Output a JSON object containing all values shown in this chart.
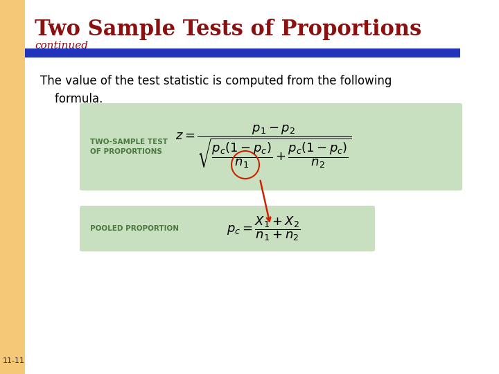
{
  "title": "Two Sample Tests of Proportions",
  "subtitle": "continued",
  "body_text": "The value of the test statistic is computed from the following\n    formula.",
  "slide_bg": "#FFFFFF",
  "left_bar_color": "#F5C878",
  "blue_bar_color": "#2233BB",
  "box1_bg": "#C8DFC0",
  "box1_label": "TWO-SAMPLE TEST\nOF PROPORTIONS",
  "box1_label_color": "#4A7A40",
  "box2_bg": "#C8DFC0",
  "box2_label": "POOLED PROPORTION",
  "box2_label_color": "#4A7A40",
  "title_color": "#8B1010",
  "subtitle_color": "#8B1010",
  "body_color": "#000000",
  "slide_number": "11-11",
  "arrow_color": "#CC2200",
  "formula1": "$z = \\dfrac{p_1 - p_2}{\\sqrt{\\dfrac{p_c(1-p_c)}{n_1} + \\dfrac{p_c(1-p_c)}{n_2}}}$",
  "formula2": "$p_c = \\dfrac{X_1 + X_2}{n_1 + n_2}$"
}
